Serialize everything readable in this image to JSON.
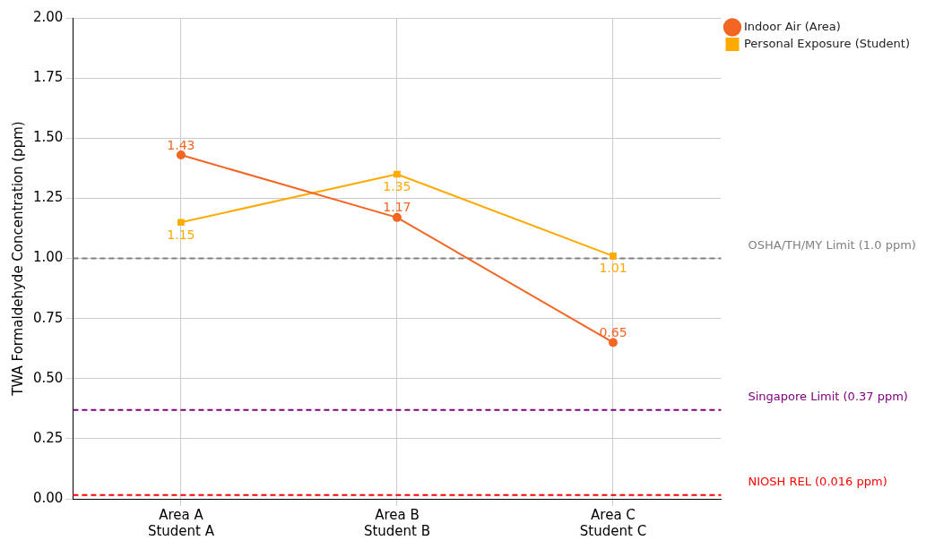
{
  "chart_data": {
    "type": "line",
    "ylabel": "TWA Formaldehyde Concentration (ppm)",
    "categories": [
      "Area A\nStudent A",
      "Area B\nStudent B",
      "Area C\nStudent C"
    ],
    "series": [
      {
        "name": "Indoor Air (Area)",
        "color": "#f26522",
        "values": [
          1.43,
          1.17,
          0.65
        ],
        "marker": "circle"
      },
      {
        "name": "Personal Exposure (Student)",
        "color": "#ffaa00",
        "values": [
          1.15,
          1.35,
          1.01
        ],
        "marker": "square"
      }
    ],
    "ylim": [
      0,
      2
    ],
    "yticks": [
      {
        "value": 0,
        "label": "0.00"
      },
      {
        "value": 0.25,
        "label": "0.25"
      },
      {
        "value": 0.5,
        "label": "0.50"
      },
      {
        "value": 0.75,
        "label": "0.75"
      },
      {
        "value": 1,
        "label": "1.00"
      },
      {
        "value": 1.25,
        "label": "1.25"
      },
      {
        "value": 1.5,
        "label": "1.50"
      },
      {
        "value": 1.75,
        "label": "1.75"
      },
      {
        "value": 2,
        "label": "2.00"
      }
    ],
    "ref_lines": [
      {
        "axis": "y",
        "value": 1.0,
        "label": "OSHA/TH/MY Limit (1.0 ppm)",
        "color": "#808080",
        "line_style": "dashed"
      },
      {
        "axis": "y",
        "value": 0.37,
        "label": "Singapore Limit (0.37 ppm)",
        "color": "#800080",
        "line_style": "dashed"
      },
      {
        "axis": "y",
        "value": 0.016,
        "label": "NIOSH REL (0.016 ppm)",
        "color": "#ff0000",
        "line_style": "dashed"
      }
    ],
    "grid": true,
    "legend": "top right",
    "data_labels": true,
    "line_style": "solid"
  }
}
